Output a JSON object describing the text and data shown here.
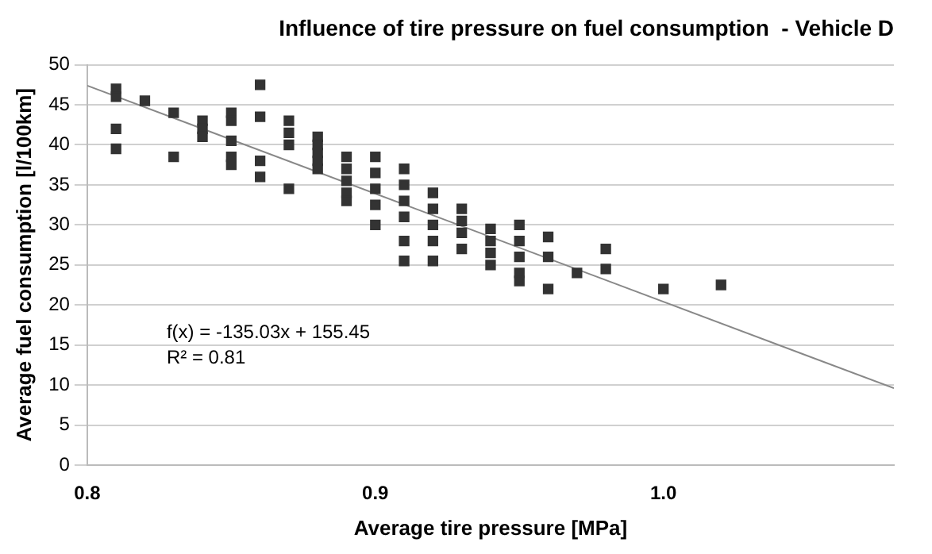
{
  "chart_data": {
    "type": "scatter",
    "title": "Influence of tire pressure on fuel consumption  - Vehicle D",
    "xlabel": "Average tire pressure [MPa]",
    "ylabel": "Average fuel consumption [l/100km]",
    "annotations": [
      "f(x) = -135.03x + 155.45",
      "R² = 0.81"
    ],
    "series": [
      {
        "type": "scatter",
        "color": "#333333",
        "marker": "square",
        "x": [
          0.81,
          0.81,
          0.81,
          0.81,
          0.82,
          0.83,
          0.83,
          0.84,
          0.84,
          0.84,
          0.85,
          0.85,
          0.85,
          0.85,
          0.85,
          0.86,
          0.86,
          0.86,
          0.86,
          0.87,
          0.87,
          0.87,
          0.87,
          0.88,
          0.88,
          0.88,
          0.88,
          0.88,
          0.89,
          0.89,
          0.89,
          0.89,
          0.89,
          0.9,
          0.9,
          0.9,
          0.9,
          0.9,
          0.91,
          0.91,
          0.91,
          0.91,
          0.91,
          0.91,
          0.92,
          0.92,
          0.92,
          0.92,
          0.92,
          0.93,
          0.93,
          0.93,
          0.93,
          0.94,
          0.94,
          0.94,
          0.94,
          0.95,
          0.95,
          0.95,
          0.95,
          0.95,
          0.96,
          0.96,
          0.96,
          0.97,
          0.98,
          0.98,
          1.0,
          1.02
        ],
        "values": [
          47,
          46,
          42,
          39.5,
          45.5,
          44,
          38.5,
          43,
          42,
          41,
          44,
          43,
          40.5,
          38.5,
          37.5,
          47.5,
          43.5,
          38,
          36,
          43,
          41.5,
          40,
          34.5,
          41,
          40,
          39,
          38,
          37,
          38.5,
          37,
          35.5,
          34,
          33,
          38.5,
          36.5,
          34.5,
          32.5,
          30,
          37,
          35,
          33,
          31,
          28,
          25.5,
          34,
          32,
          30,
          28,
          25.5,
          32,
          30.5,
          29,
          27,
          29.5,
          28,
          26.5,
          25,
          30,
          28,
          26,
          24,
          23,
          28.5,
          26,
          22,
          24,
          27,
          24.5,
          22,
          22.5
        ]
      },
      {
        "type": "line",
        "color": "#888888",
        "marker": "none",
        "line_style": "solid",
        "x": [
          0.8,
          1.08
        ],
        "values": [
          47.4,
          9.6
        ]
      }
    ],
    "xlim": [
      0.8,
      1.08
    ],
    "xticks": [
      0.8,
      0.9,
      {
        "value": 1,
        "label": "1.0"
      }
    ],
    "ylim": [
      0,
      50
    ],
    "yticks": [
      0,
      5,
      10,
      15,
      20,
      25,
      30,
      35,
      40,
      45,
      50
    ],
    "grid": "y"
  }
}
